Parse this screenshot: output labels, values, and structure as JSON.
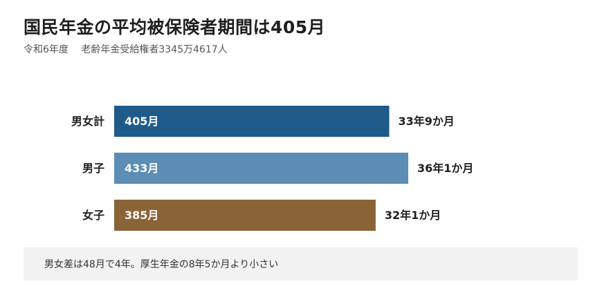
{
  "title": "国民年金の平均被保険者期間は405月",
  "subtitle": {
    "year": "令和6年度",
    "recipients": "老齢年金受給権者3345万4617人"
  },
  "chart_data": {
    "type": "bar",
    "orientation": "horizontal",
    "categories": [
      "男女計",
      "男子",
      "女子"
    ],
    "values": [
      405,
      433,
      385
    ],
    "value_labels": [
      "405月",
      "433月",
      "385月"
    ],
    "end_labels": [
      "33年9か月",
      "36年1か月",
      "32年1か月"
    ],
    "colors": [
      "#1f5b8a",
      "#5b8db5",
      "#8a6336"
    ],
    "unit": "月"
  },
  "note": "男女差は48月で4年。厚生年金の8年5か月より小さい"
}
